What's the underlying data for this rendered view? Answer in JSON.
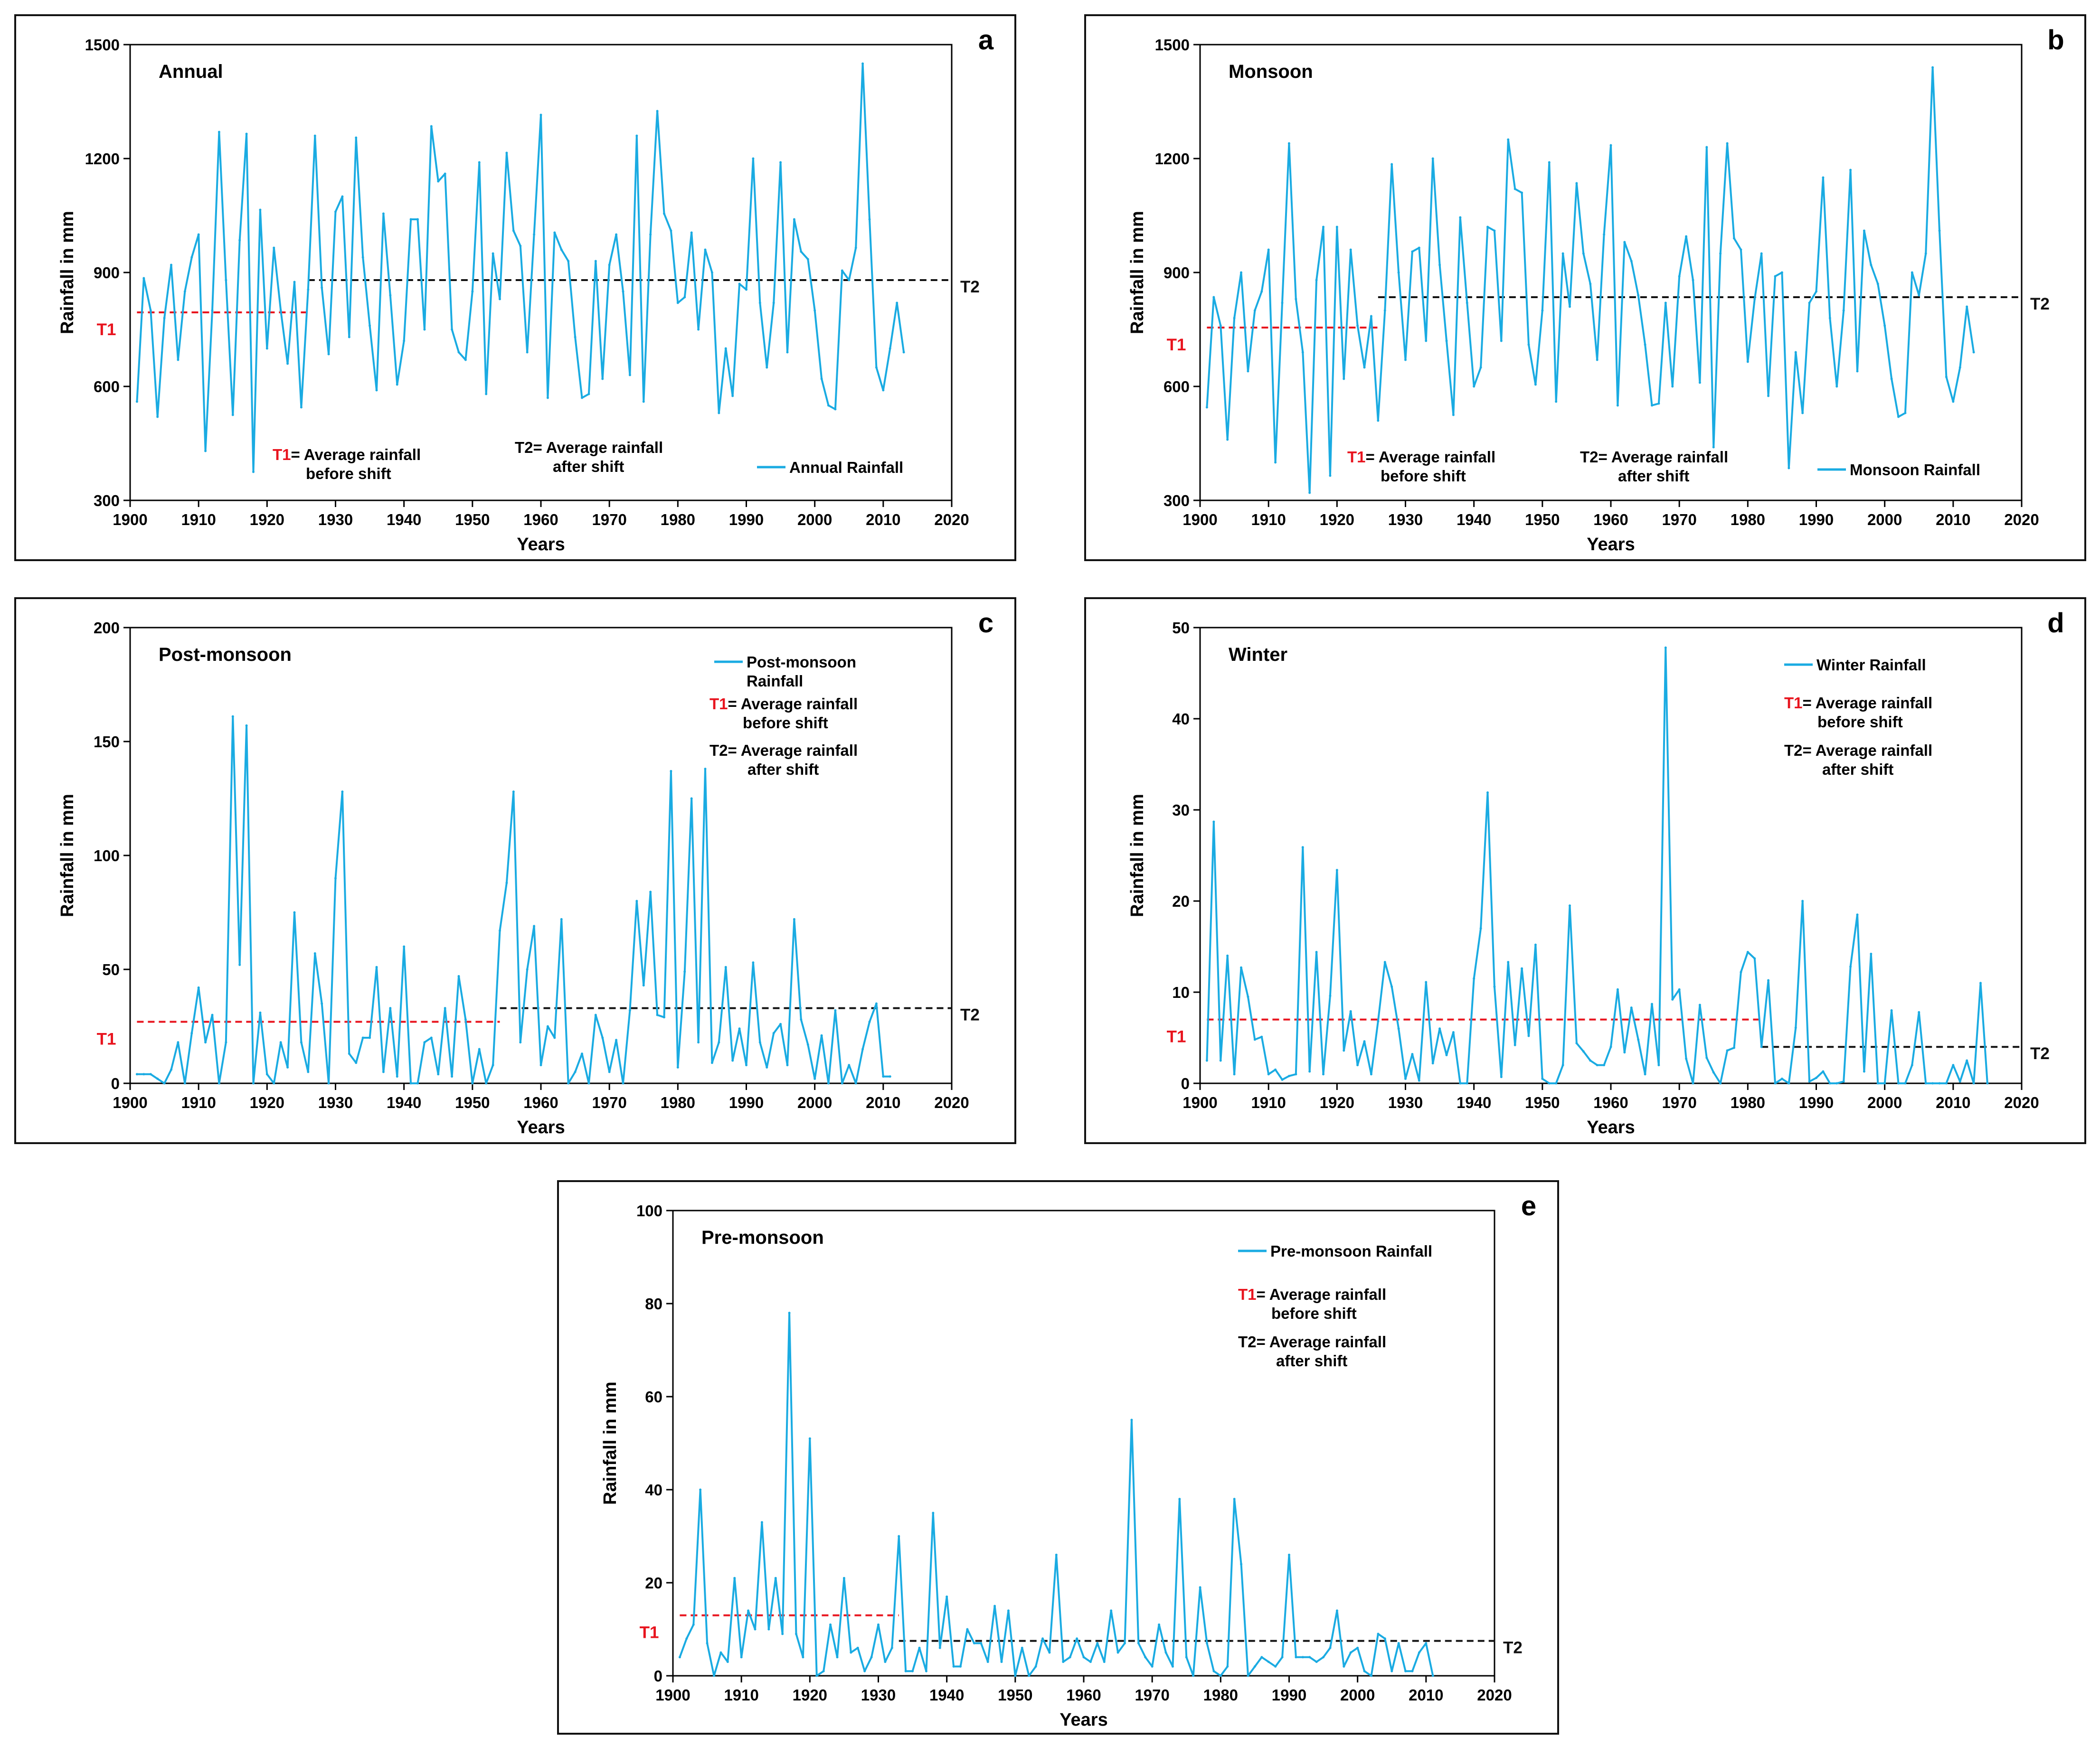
{
  "colors": {
    "series": "#1aabe2",
    "t1": "#e8141e",
    "t2": "#111111",
    "axis": "#000000"
  },
  "chart_data": [
    {
      "id": "a",
      "type": "line",
      "letter": "a",
      "title": "Annual",
      "xlabel": "Years",
      "ylabel": "Rainfall in mm",
      "xlim": [
        1900,
        2020
      ],
      "ylim": [
        300,
        1500
      ],
      "xticks": [
        1900,
        1910,
        1920,
        1930,
        1940,
        1950,
        1960,
        1970,
        1980,
        1990,
        2000,
        2010,
        2020
      ],
      "yticks": [
        300,
        600,
        900,
        1200,
        1500
      ],
      "x_start": 1901,
      "series": [
        {
          "name": "Annual Rainfall",
          "values": [
            560,
            885,
            800,
            520,
            780,
            920,
            670,
            850,
            940,
            1000,
            430,
            800,
            1270,
            880,
            525,
            985,
            1265,
            375,
            1065,
            700,
            965,
            800,
            660,
            875,
            545,
            855,
            1260,
            860,
            685,
            1060,
            1100,
            730,
            1255,
            940,
            760,
            590,
            1055,
            840,
            605,
            720,
            1040,
            1040,
            750,
            1285,
            1140,
            1160,
            750,
            690,
            670,
            850,
            1190,
            580,
            950,
            830,
            1215,
            1010,
            970,
            690,
            1000,
            1315,
            570,
            1005,
            960,
            930,
            730,
            570,
            580,
            930,
            620,
            920,
            1000,
            850,
            630,
            1260,
            560,
            1000,
            1325,
            1055,
            1010,
            820,
            835,
            1005,
            750,
            960,
            900,
            530,
            700,
            575,
            870,
            855,
            1200,
            820,
            650,
            820,
            1190,
            690,
            1040,
            955,
            935,
            800,
            620,
            550,
            540,
            905,
            880,
            965,
            1450,
            1040,
            650,
            590,
            700,
            820,
            690
          ]
        }
      ],
      "legend": {
        "label": "Annual Rainfall"
      },
      "t1": {
        "label": "T1",
        "value": 795,
        "x_range": [
          1901,
          1926
        ]
      },
      "t2": {
        "label": "T2",
        "value": 880,
        "x_range": [
          1926,
          2020
        ]
      },
      "notes": {
        "t1_key": "T1",
        "t1_rest": "= Average rainfall",
        "t1_line2": "before shift",
        "t2_line1": "T2= Average rainfall",
        "t2_line2": "after shift"
      }
    },
    {
      "id": "b",
      "type": "line",
      "letter": "b",
      "title": "Monsoon",
      "xlabel": "Years",
      "ylabel": "Rainfall in mm",
      "xlim": [
        1900,
        2020
      ],
      "ylim": [
        300,
        1500
      ],
      "xticks": [
        1900,
        1910,
        1920,
        1930,
        1940,
        1950,
        1960,
        1970,
        1980,
        1990,
        2000,
        2010,
        2020
      ],
      "yticks": [
        300,
        600,
        900,
        1200,
        1500
      ],
      "x_start": 1901,
      "series": [
        {
          "name": "Monsoon Rainfall",
          "values": [
            545,
            835,
            760,
            460,
            780,
            900,
            640,
            800,
            850,
            960,
            400,
            820,
            1240,
            830,
            690,
            320,
            880,
            1020,
            365,
            1020,
            620,
            960,
            760,
            650,
            785,
            510,
            800,
            1185,
            900,
            670,
            955,
            965,
            720,
            1200,
            920,
            720,
            525,
            1045,
            820,
            600,
            650,
            1020,
            1010,
            720,
            1250,
            1120,
            1110,
            710,
            605,
            800,
            1190,
            560,
            950,
            810,
            1135,
            950,
            870,
            670,
            1000,
            1235,
            550,
            980,
            930,
            840,
            710,
            550,
            555,
            820,
            600,
            890,
            995,
            880,
            610,
            1230,
            440,
            950,
            1240,
            990,
            960,
            665,
            830,
            950,
            575,
            890,
            900,
            385,
            690,
            530,
            820,
            850,
            1150,
            780,
            600,
            800,
            1170,
            640,
            1010,
            920,
            870,
            760,
            620,
            520,
            530,
            900,
            840,
            950,
            1440,
            1010,
            625,
            560,
            650,
            810,
            690
          ]
        }
      ],
      "legend": {
        "label": "Monsoon Rainfall"
      },
      "t1": {
        "label": "T1",
        "value": 755,
        "x_range": [
          1901,
          1926
        ]
      },
      "t2": {
        "label": "T2",
        "value": 835,
        "x_range": [
          1926,
          2020
        ]
      },
      "notes": {
        "t1_key": "T1",
        "t1_rest": "= Average rainfall",
        "t1_line2": "before shift",
        "t2_line1": "T2= Average rainfall",
        "t2_line2": "after shift"
      }
    },
    {
      "id": "c",
      "type": "line",
      "letter": "c",
      "title": "Post-monsoon",
      "xlabel": "Years",
      "ylabel": "Rainfall in mm",
      "xlim": [
        1900,
        2020
      ],
      "ylim": [
        0,
        200
      ],
      "xticks": [
        1900,
        1910,
        1920,
        1930,
        1940,
        1950,
        1960,
        1970,
        1980,
        1990,
        2000,
        2010,
        2020
      ],
      "yticks": [
        0,
        50,
        100,
        150,
        200
      ],
      "x_start": 1901,
      "series": [
        {
          "name": "Post-monsoon Rainfall",
          "values": [
            4,
            4,
            4,
            2,
            0,
            6,
            18,
            0,
            22,
            42,
            18,
            30,
            0,
            18,
            161,
            52,
            157,
            0,
            31,
            4,
            0,
            18,
            7,
            75,
            18,
            5,
            57,
            35,
            0,
            90,
            128,
            13,
            9,
            20,
            20,
            51,
            5,
            33,
            3,
            60,
            0,
            0,
            18,
            20,
            4,
            33,
            3,
            47,
            28,
            0,
            15,
            0,
            8,
            67,
            88,
            128,
            18,
            50,
            69,
            8,
            25,
            20,
            72,
            0,
            5,
            13,
            0,
            30,
            20,
            5,
            19,
            0,
            32,
            80,
            43,
            84,
            30,
            29,
            137,
            7,
            49,
            125,
            18,
            138,
            9,
            18,
            51,
            10,
            24,
            8,
            53,
            18,
            7,
            22,
            26,
            8,
            72,
            28,
            17,
            2,
            21,
            0,
            32,
            0,
            8,
            0,
            15,
            27,
            35,
            3,
            3
          ]
        }
      ],
      "legend": {
        "label": "Post-monsoon",
        "label2": "Rainfall"
      },
      "t1": {
        "label": "T1",
        "value": 27,
        "x_range": [
          1901,
          1954
        ]
      },
      "t2": {
        "label": "T2",
        "value": 33,
        "x_range": [
          1954,
          2020
        ]
      },
      "notes": {
        "t1_key": "T1",
        "t1_rest": "= Average rainfall",
        "t1_line2": "before shift",
        "t2_line1": "T2= Average rainfall",
        "t2_line2": "after shift"
      }
    },
    {
      "id": "d",
      "type": "line",
      "letter": "d",
      "title": "Winter",
      "xlabel": "Years",
      "ylabel": "Rainfall in mm",
      "xlim": [
        1900,
        2020
      ],
      "ylim": [
        0,
        50
      ],
      "xticks": [
        1900,
        1910,
        1920,
        1930,
        1940,
        1950,
        1960,
        1970,
        1980,
        1990,
        2000,
        2010,
        2020
      ],
      "yticks": [
        0,
        10,
        20,
        30,
        40,
        50
      ],
      "x_start": 1901,
      "series": [
        {
          "name": "Winter Rainfall",
          "values": [
            2.5,
            28.7,
            2.5,
            14,
            1,
            12.7,
            9.5,
            4.8,
            5.1,
            1,
            1.5,
            0.4,
            0.8,
            1,
            25.9,
            1.3,
            14.4,
            1,
            9.6,
            23.4,
            3.6,
            7.9,
            2,
            4.6,
            1,
            6.8,
            13.3,
            10.6,
            6,
            0.5,
            3.2,
            0.3,
            11.1,
            2.2,
            6,
            3.1,
            5.6,
            0,
            0,
            11.5,
            17,
            31.9,
            10.6,
            0.7,
            13.3,
            4.2,
            12.6,
            5.2,
            15.2,
            0.5,
            0,
            0,
            2,
            19.5,
            4.4,
            3.5,
            2.5,
            2,
            2,
            4,
            10.3,
            3.4,
            8.3,
            4.8,
            1,
            8.7,
            2,
            47.8,
            9.2,
            10.3,
            2.7,
            0,
            8.6,
            2.8,
            1.2,
            0,
            3.6,
            3.9,
            12.2,
            14.4,
            13.7,
            4,
            11.3,
            0,
            0.5,
            0,
            6.1,
            20,
            0.2,
            0.6,
            1.3,
            0,
            0,
            0.2,
            12.8,
            18.5,
            1.3,
            14.2,
            0,
            0,
            8,
            0,
            0,
            2,
            7.8,
            0,
            0,
            0,
            0,
            2,
            0.2,
            2.5,
            0,
            11,
            0
          ]
        }
      ],
      "legend": {
        "label": "Winter Rainfall"
      },
      "t1": {
        "label": "T1",
        "value": 7,
        "x_range": [
          1901,
          1982
        ]
      },
      "t2": {
        "label": "T2",
        "value": 4,
        "x_range": [
          1982,
          2020
        ]
      },
      "notes": {
        "t1_key": "T1",
        "t1_rest": "= Average rainfall",
        "t1_line2": "before shift",
        "t2_line1": "T2= Average rainfall",
        "t2_line2": "after shift"
      }
    },
    {
      "id": "e",
      "type": "line",
      "letter": "e",
      "title": "Pre-monsoon",
      "xlabel": "Years",
      "ylabel": "Rainfall in mm",
      "xlim": [
        1900,
        2020
      ],
      "ylim": [
        0,
        100
      ],
      "xticks": [
        1900,
        1910,
        1920,
        1930,
        1940,
        1950,
        1960,
        1970,
        1980,
        1990,
        2000,
        2010,
        2020
      ],
      "yticks": [
        0,
        20,
        40,
        60,
        80,
        100
      ],
      "x_start": 1901,
      "series": [
        {
          "name": "Pre-monsoon Rainfall",
          "values": [
            4,
            8,
            11,
            40,
            7,
            0,
            5,
            3,
            21,
            4,
            14,
            10,
            33,
            10,
            21,
            9,
            78,
            9,
            4,
            51,
            0,
            1,
            11,
            4,
            21,
            5,
            6,
            1,
            4,
            11,
            3,
            6,
            30,
            1,
            1,
            6,
            1,
            35,
            6,
            17,
            2,
            2,
            10,
            7,
            7,
            3,
            15,
            3,
            14,
            0,
            6,
            0,
            2,
            8,
            5,
            26,
            3,
            4,
            8,
            4,
            3,
            7,
            3,
            14,
            5,
            7,
            55,
            7,
            4,
            2,
            11,
            5,
            2,
            38,
            4,
            0,
            19,
            7,
            1,
            0,
            2,
            38,
            24,
            0,
            2,
            4,
            3,
            2,
            4,
            26,
            4,
            4,
            4,
            3,
            4,
            6,
            14,
            2,
            5,
            6,
            1,
            0,
            9,
            8,
            1,
            7,
            1,
            1,
            5,
            7,
            0
          ]
        }
      ],
      "legend": {
        "label": "Pre-monsoon Rainfall"
      },
      "t1": {
        "label": "T1",
        "value": 13,
        "x_range": [
          1901,
          1933
        ]
      },
      "t2": {
        "label": "T2",
        "value": 7.5,
        "x_range": [
          1933,
          2020
        ]
      },
      "notes": {
        "t1_key": "T1",
        "t1_rest": "= Average rainfall",
        "t1_line2": "before shift",
        "t2_line1": "T2= Average rainfall",
        "t2_line2": "after shift"
      }
    }
  ]
}
